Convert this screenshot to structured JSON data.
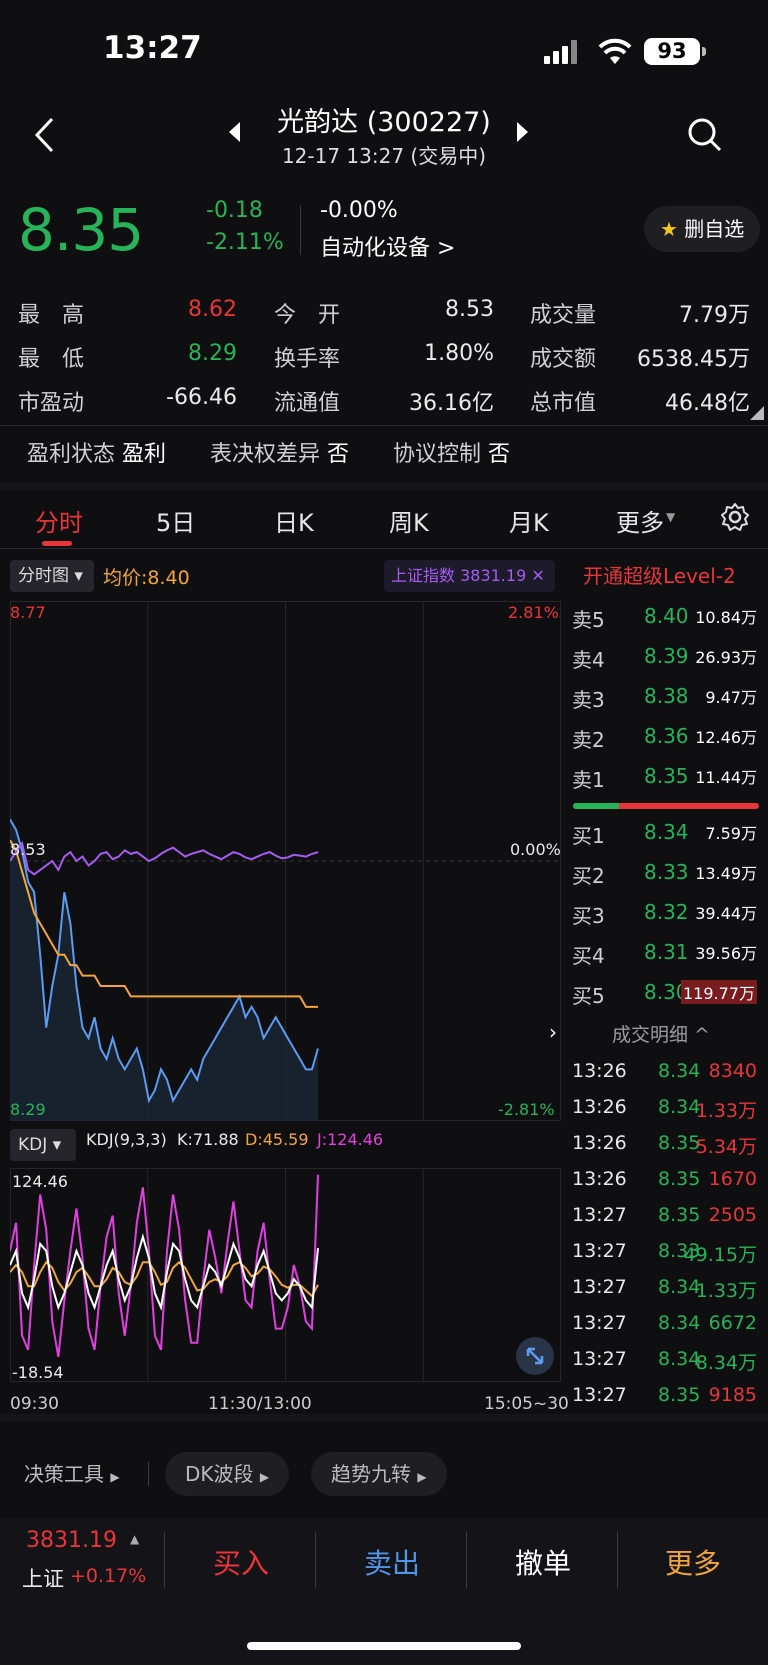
{
  "status": {
    "time": "13:27",
    "battery": "93"
  },
  "header": {
    "title": "光韵达 (300227)",
    "subtitle": "12-17 13:27 (交易中)"
  },
  "quote": {
    "price": "8.35",
    "change": "-0.18",
    "change_pct": "-2.11%",
    "industry_pct": "-0.00%",
    "industry": "自动化设备 >",
    "fav_label": "删自选",
    "fav_icon": "★"
  },
  "stats": [
    {
      "label": "最　高",
      "value": "8.62",
      "color": "red"
    },
    {
      "label": "今　开",
      "value": "8.53",
      "color": "white"
    },
    {
      "label": "成交量",
      "value": "7.79万",
      "color": "white"
    },
    {
      "label": "最　低",
      "value": "8.29",
      "color": "green"
    },
    {
      "label": "换手率",
      "value": "1.80%",
      "color": "white"
    },
    {
      "label": "成交额",
      "value": "6538.45万",
      "color": "white"
    },
    {
      "label": "市盈动",
      "value": "-66.46",
      "color": "white"
    },
    {
      "label": "流通值",
      "value": "36.16亿",
      "color": "white"
    },
    {
      "label": "总市值",
      "value": "46.48亿",
      "color": "white"
    }
  ],
  "tags": [
    {
      "label": "盈利状态",
      "value": "盈利"
    },
    {
      "label": "表决权差异",
      "value": "否"
    },
    {
      "label": "协议控制",
      "value": "否"
    }
  ],
  "tabs": [
    "分时",
    "5日",
    "日K",
    "周K",
    "月K",
    "更多"
  ],
  "chart_header": {
    "type_label": "分时图",
    "avg_label": "均价:8.40",
    "index_label": "上证指数 3831.19",
    "level2": "开通超级Level-2"
  },
  "chart_data": {
    "type": "line",
    "ymax": "8.77",
    "ymin": "8.29",
    "ymid": "8.53",
    "pct_max": "2.81%",
    "pct_mid": "0.00%",
    "pct_min": "-2.81%",
    "x_labels": [
      "09:30",
      "11:30/13:00",
      "15:05~30"
    ],
    "price": [
      8.57,
      8.56,
      8.54,
      8.51,
      8.5,
      8.44,
      8.37,
      8.41,
      8.44,
      8.5,
      8.47,
      8.41,
      8.37,
      8.36,
      8.38,
      8.35,
      8.34,
      8.36,
      8.34,
      8.33,
      8.34,
      8.35,
      8.33,
      8.3,
      8.31,
      8.33,
      8.32,
      8.3,
      8.31,
      8.32,
      8.33,
      8.32,
      8.34,
      8.35,
      8.36,
      8.37,
      8.38,
      8.39,
      8.4,
      8.38,
      8.39,
      8.38,
      8.36,
      8.37,
      8.38,
      8.37,
      8.36,
      8.35,
      8.34,
      8.33,
      8.33,
      8.35
    ],
    "avg": [
      8.55,
      8.54,
      8.52,
      8.5,
      8.48,
      8.47,
      8.46,
      8.45,
      8.44,
      8.44,
      8.43,
      8.43,
      8.42,
      8.42,
      8.42,
      8.41,
      8.41,
      8.41,
      8.41,
      8.41,
      8.4,
      8.4,
      8.4,
      8.4,
      8.4,
      8.4,
      8.4,
      8.4,
      8.4,
      8.4,
      8.4,
      8.4,
      8.4,
      8.4,
      8.4,
      8.4,
      8.4,
      8.4,
      8.4,
      8.4,
      8.4,
      8.4,
      8.4,
      8.4,
      8.4,
      8.4,
      8.4,
      8.4,
      8.4,
      8.39,
      8.39,
      8.39
    ],
    "index_pct": [
      0.0,
      0.1,
      0.2,
      -0.1,
      -0.15,
      -0.1,
      -0.05,
      0.0,
      -0.1,
      0.05,
      0.1,
      0.0,
      0.05,
      -0.05,
      0.0,
      0.08,
      0.1,
      0.02,
      0.05,
      0.12,
      0.08,
      0.1,
      0.05,
      0.0,
      0.03,
      0.08,
      0.12,
      0.15,
      0.1,
      0.05,
      0.08,
      0.1,
      0.12,
      0.08,
      0.05,
      0.02,
      0.06,
      0.1,
      0.08,
      0.04,
      0.02,
      0.05,
      0.08,
      0.1,
      0.06,
      0.03,
      0.04,
      0.07,
      0.06,
      0.05,
      0.08,
      0.1
    ]
  },
  "kdj": {
    "mode": "KDJ",
    "params": "KDJ(9,3,3)",
    "k": "K:71.88",
    "d": "D:45.59",
    "j": "J:124.46",
    "ymax": "124.46",
    "ymin": "-18.54",
    "K": [
      60,
      70,
      40,
      30,
      50,
      75,
      70,
      45,
      30,
      40,
      55,
      70,
      60,
      40,
      30,
      45,
      60,
      70,
      50,
      35,
      45,
      65,
      80,
      65,
      40,
      30,
      55,
      75,
      70,
      50,
      35,
      30,
      45,
      60,
      55,
      45,
      60,
      75,
      65,
      50,
      45,
      60,
      70,
      55,
      40,
      35,
      40,
      50,
      45,
      35,
      30,
      72
    ],
    "D": [
      55,
      60,
      55,
      45,
      45,
      55,
      62,
      58,
      48,
      42,
      47,
      55,
      58,
      52,
      45,
      45,
      50,
      58,
      55,
      48,
      46,
      52,
      62,
      62,
      55,
      46,
      48,
      58,
      62,
      58,
      50,
      42,
      43,
      48,
      50,
      48,
      52,
      60,
      62,
      58,
      52,
      54,
      59,
      57,
      52,
      46,
      44,
      46,
      46,
      42,
      38,
      46
    ],
    "J": [
      70,
      90,
      10,
      0,
      60,
      110,
      85,
      20,
      -5,
      35,
      70,
      100,
      65,
      15,
      0,
      45,
      80,
      95,
      40,
      10,
      45,
      90,
      115,
      70,
      10,
      0,
      70,
      110,
      85,
      35,
      5,
      5,
      50,
      85,
      65,
      40,
      75,
      105,
      70,
      35,
      30,
      70,
      90,
      50,
      15,
      15,
      30,
      60,
      45,
      20,
      15,
      124
    ]
  },
  "order_book": {
    "sell": [
      {
        "label": "卖5",
        "price": "8.40",
        "vol": "10.84万"
      },
      {
        "label": "卖4",
        "price": "8.39",
        "vol": "26.93万"
      },
      {
        "label": "卖3",
        "price": "8.38",
        "vol": "9.47万"
      },
      {
        "label": "卖2",
        "price": "8.36",
        "vol": "12.46万"
      },
      {
        "label": "卖1",
        "price": "8.35",
        "vol": "11.44万"
      }
    ],
    "buy": [
      {
        "label": "买1",
        "price": "8.34",
        "vol": "7.59万"
      },
      {
        "label": "买2",
        "price": "8.33",
        "vol": "13.49万"
      },
      {
        "label": "买3",
        "price": "8.32",
        "vol": "39.44万"
      },
      {
        "label": "买4",
        "price": "8.31",
        "vol": "39.56万"
      },
      {
        "label": "买5",
        "price": "8.30",
        "vol": "119.77万"
      }
    ],
    "detail_label": "成交明细 ^"
  },
  "trades": [
    {
      "t": "13:26",
      "p": "8.34",
      "v": "8340",
      "c": "red"
    },
    {
      "t": "13:26",
      "p": "8.34",
      "v": "1.33万",
      "c": "red"
    },
    {
      "t": "13:26",
      "p": "8.35",
      "v": "5.34万",
      "c": "red"
    },
    {
      "t": "13:26",
      "p": "8.35",
      "v": "1670",
      "c": "red"
    },
    {
      "t": "13:27",
      "p": "8.35",
      "v": "2505",
      "c": "red"
    },
    {
      "t": "13:27",
      "p": "8.33",
      "v": "49.15万",
      "c": "green"
    },
    {
      "t": "13:27",
      "p": "8.34",
      "v": "1.33万",
      "c": "green"
    },
    {
      "t": "13:27",
      "p": "8.34",
      "v": "6672",
      "c": "green"
    },
    {
      "t": "13:27",
      "p": "8.34",
      "v": "8.34万",
      "c": "green"
    },
    {
      "t": "13:27",
      "p": "8.35",
      "v": "9185",
      "c": "red"
    }
  ],
  "tools": [
    "决策工具",
    "DK波段",
    "趋势九转"
  ],
  "bottom": {
    "index_value": "3831.19",
    "index_name": "上证",
    "index_pct": "+0.17%",
    "buy": "买入",
    "sell": "卖出",
    "cancel": "撤单",
    "more": "更多"
  }
}
